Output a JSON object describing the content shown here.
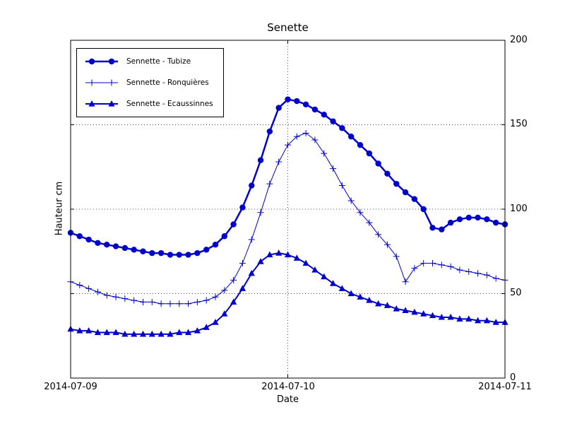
{
  "chart_data": {
    "type": "line",
    "title": "Senette",
    "xlabel": "Date",
    "ylabel": "Hauteur cm",
    "ylim": [
      0,
      200
    ],
    "y_ticks": [
      0,
      50,
      100,
      150,
      200
    ],
    "y_tick_labels": [
      "0",
      "50",
      "100",
      "150",
      "200"
    ],
    "x_tick_labels": [
      "2014-07-09",
      "2014-07-10",
      "2014-07-11"
    ],
    "x_tick_hours": [
      0,
      24,
      48
    ],
    "x_range_hours": [
      0,
      48
    ],
    "x_interval_hours": 1,
    "grid": {
      "style": "dotted",
      "y_lines": [
        50,
        100,
        150
      ],
      "x_lines_hours": [
        24
      ]
    },
    "legend_position": "upper left",
    "accent_color": "#0000cc",
    "series": [
      {
        "name": "Sennette - Tubize",
        "marker": "circle",
        "color": "#0000cc",
        "line_width": 2.5,
        "values": [
          86,
          84,
          82,
          80,
          79,
          78,
          77,
          76,
          75,
          74,
          74,
          73,
          73,
          73,
          74,
          76,
          79,
          84,
          91,
          101,
          114,
          129,
          146,
          160,
          165,
          164,
          162,
          159,
          156,
          152,
          148,
          143,
          138,
          133,
          127,
          121,
          115,
          110,
          106,
          100,
          89,
          88,
          92,
          94,
          95,
          95,
          94,
          92,
          91
        ]
      },
      {
        "name": "Sennette - Ronquières",
        "marker": "plus",
        "color": "#0000cc",
        "line_width": 1,
        "values": [
          57,
          55,
          53,
          51,
          49,
          48,
          47,
          46,
          45,
          45,
          44,
          44,
          44,
          44,
          45,
          46,
          48,
          52,
          58,
          68,
          82,
          98,
          115,
          128,
          138,
          143,
          145,
          141,
          133,
          124,
          114,
          105,
          98,
          92,
          85,
          79,
          72,
          57,
          65,
          68,
          68,
          67,
          66,
          64,
          63,
          62,
          61,
          59,
          58
        ]
      },
      {
        "name": "Sennette - Ecaussinnes",
        "marker": "triangle",
        "color": "#0000cc",
        "line_width": 2,
        "values": [
          29,
          28,
          28,
          27,
          27,
          27,
          26,
          26,
          26,
          26,
          26,
          26,
          27,
          27,
          28,
          30,
          33,
          38,
          45,
          53,
          62,
          69,
          73,
          74,
          73,
          71,
          68,
          64,
          60,
          56,
          53,
          50,
          48,
          46,
          44,
          43,
          41,
          40,
          39,
          38,
          37,
          36,
          36,
          35,
          35,
          34,
          34,
          33,
          33
        ]
      }
    ]
  }
}
